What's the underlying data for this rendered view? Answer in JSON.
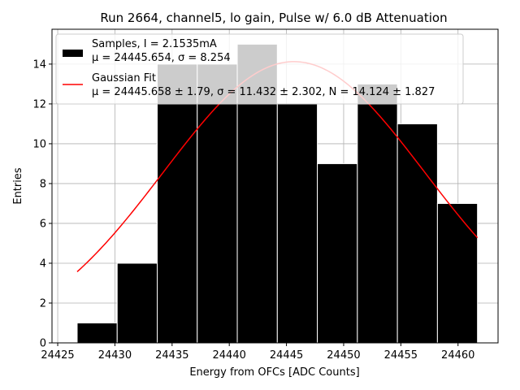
{
  "chart_data": {
    "type": "bar",
    "title": "Run 2664, channel5, lo gain, Pulse w/ 6.0 dB Attenuation",
    "xlabel": "Energy from OFCs [ADC Counts]",
    "ylabel": "Entries",
    "xlim": [
      24424.5,
      24463.5
    ],
    "ylim": [
      0,
      15.75
    ],
    "xticks": [
      24425,
      24430,
      24435,
      24440,
      24445,
      24450,
      24455,
      24460
    ],
    "yticks": [
      0,
      2,
      4,
      6,
      8,
      10,
      12,
      14
    ],
    "grid": true,
    "legend_position": "top-left",
    "histogram": {
      "name": "Samples, I = 2.1535mA",
      "stats_line": "μ = 24445.654, σ = 8.254",
      "color": "#000000",
      "bins": [
        {
          "x0": 24426.7,
          "x1": 24430.2,
          "count": 1
        },
        {
          "x0": 24430.2,
          "x1": 24433.7,
          "count": 4
        },
        {
          "x0": 24433.7,
          "x1": 24437.2,
          "count": 14
        },
        {
          "x0": 24437.2,
          "x1": 24440.7,
          "count": 14
        },
        {
          "x0": 24440.7,
          "x1": 24444.2,
          "count": 15
        },
        {
          "x0": 24444.2,
          "x1": 24447.7,
          "count": 12
        },
        {
          "x0": 24447.7,
          "x1": 24451.2,
          "count": 9
        },
        {
          "x0": 24451.2,
          "x1": 24454.7,
          "count": 13
        },
        {
          "x0": 24454.7,
          "x1": 24458.2,
          "count": 11
        },
        {
          "x0": 24458.2,
          "x1": 24461.7,
          "count": 7
        }
      ]
    },
    "fit": {
      "name": "Gaussian Fit",
      "stats_line": "μ = 24445.658 ± 1.79, σ = 11.432 ± 2.302, N = 14.124 ± 1.827",
      "color": "#ff0000",
      "mu": 24445.658,
      "sigma": 11.432,
      "N": 14.124,
      "x_range": [
        24426.7,
        24461.7
      ]
    }
  }
}
